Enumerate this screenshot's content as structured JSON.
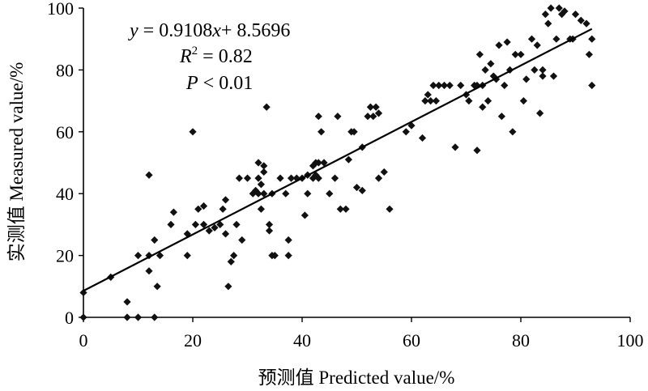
{
  "chart_data": {
    "type": "scatter",
    "xlabel": "预测值 Predicted value/%",
    "ylabel": "实测值 Measured value/%",
    "xlim": [
      0,
      100
    ],
    "ylim": [
      0,
      100
    ],
    "xticks": [
      "0",
      "20",
      "40",
      "60",
      "80",
      "100"
    ],
    "yticks": [
      "0",
      "20",
      "40",
      "60",
      "80",
      "100"
    ],
    "grid": false,
    "legend": "none",
    "point_color": "#111111",
    "annotations": {
      "equation": {
        "y": "y",
        "eq": " = 0.9108",
        "x": "x",
        "rest": "+ 8.5696"
      },
      "r2": {
        "r": "R",
        "sup": "2",
        "rest": " = 0.82"
      },
      "p": {
        "p": "P",
        "rest": " < 0.01"
      }
    },
    "fit_line": {
      "slope": 0.9108,
      "intercept": 8.5696,
      "x_range": [
        0,
        93
      ]
    },
    "series": [
      {
        "points": [
          [
            0,
            8
          ],
          [
            0,
            0
          ],
          [
            5,
            13
          ],
          [
            8,
            0
          ],
          [
            8,
            5
          ],
          [
            10,
            0
          ],
          [
            10,
            20
          ],
          [
            12,
            15
          ],
          [
            12,
            20
          ],
          [
            12,
            46
          ],
          [
            13,
            25
          ],
          [
            13,
            0
          ],
          [
            13.5,
            10
          ],
          [
            14,
            20
          ],
          [
            16,
            30
          ],
          [
            16.5,
            34
          ],
          [
            19,
            20
          ],
          [
            19,
            27
          ],
          [
            20,
            60
          ],
          [
            20.5,
            30
          ],
          [
            21,
            35
          ],
          [
            22,
            30
          ],
          [
            22,
            36
          ],
          [
            23,
            28
          ],
          [
            24,
            29
          ],
          [
            25,
            30
          ],
          [
            25.5,
            35
          ],
          [
            26,
            38
          ],
          [
            26,
            27
          ],
          [
            26.5,
            10
          ],
          [
            27,
            18
          ],
          [
            27.5,
            20
          ],
          [
            28,
            30
          ],
          [
            28.5,
            45
          ],
          [
            29,
            25
          ],
          [
            30,
            45
          ],
          [
            31,
            40
          ],
          [
            31.5,
            41
          ],
          [
            32,
            45
          ],
          [
            32,
            40
          ],
          [
            32,
            50
          ],
          [
            32.5,
            35
          ],
          [
            32.5,
            43
          ],
          [
            33,
            49
          ],
          [
            33,
            40
          ],
          [
            33,
            47
          ],
          [
            33.5,
            68
          ],
          [
            34,
            30
          ],
          [
            34,
            28
          ],
          [
            34.5,
            20
          ],
          [
            34.5,
            40
          ],
          [
            35,
            20
          ],
          [
            36,
            45
          ],
          [
            37,
            40
          ],
          [
            37.5,
            25
          ],
          [
            37.5,
            20
          ],
          [
            38,
            45
          ],
          [
            39,
            45
          ],
          [
            40,
            45
          ],
          [
            40.5,
            33
          ],
          [
            41,
            46
          ],
          [
            41,
            40
          ],
          [
            42,
            45
          ],
          [
            42,
            49
          ],
          [
            42.5,
            50
          ],
          [
            42.5,
            46
          ],
          [
            43,
            45
          ],
          [
            43,
            65
          ],
          [
            43,
            50
          ],
          [
            43.5,
            60
          ],
          [
            44,
            50
          ],
          [
            45,
            40
          ],
          [
            46,
            45
          ],
          [
            46.5,
            65
          ],
          [
            47,
            35
          ],
          [
            48,
            35
          ],
          [
            48.5,
            51
          ],
          [
            49,
            60
          ],
          [
            49.5,
            60
          ],
          [
            50,
            42
          ],
          [
            51,
            55
          ],
          [
            51,
            41
          ],
          [
            52,
            65
          ],
          [
            52.5,
            68
          ],
          [
            53,
            65
          ],
          [
            53.5,
            68
          ],
          [
            54,
            45
          ],
          [
            54,
            66
          ],
          [
            55,
            47
          ],
          [
            56,
            35
          ],
          [
            59,
            60
          ],
          [
            60,
            62
          ],
          [
            62,
            58
          ],
          [
            62.5,
            70
          ],
          [
            63,
            72
          ],
          [
            63.5,
            70
          ],
          [
            64,
            75
          ],
          [
            64.5,
            70
          ],
          [
            65,
            75
          ],
          [
            66,
            75
          ],
          [
            67,
            75
          ],
          [
            68,
            55
          ],
          [
            69,
            75
          ],
          [
            70,
            72
          ],
          [
            70.5,
            70
          ],
          [
            71.5,
            75
          ],
          [
            72,
            54
          ],
          [
            72,
            75
          ],
          [
            72.5,
            85
          ],
          [
            73,
            68
          ],
          [
            73,
            75
          ],
          [
            73.5,
            80
          ],
          [
            74,
            70
          ],
          [
            74.5,
            82
          ],
          [
            75,
            78
          ],
          [
            75.5,
            77
          ],
          [
            76,
            88
          ],
          [
            76.5,
            65
          ],
          [
            77,
            75
          ],
          [
            77.5,
            89
          ],
          [
            78,
            80
          ],
          [
            78.5,
            60
          ],
          [
            79,
            85
          ],
          [
            80,
            85
          ],
          [
            80.5,
            70
          ],
          [
            81,
            77
          ],
          [
            82,
            90
          ],
          [
            82.5,
            80
          ],
          [
            83,
            88
          ],
          [
            83.5,
            66
          ],
          [
            84,
            78
          ],
          [
            84,
            80
          ],
          [
            84.5,
            98
          ],
          [
            85,
            95
          ],
          [
            85.5,
            100
          ],
          [
            86,
            78
          ],
          [
            86.5,
            90
          ],
          [
            87,
            100
          ],
          [
            87.5,
            98
          ],
          [
            88,
            99
          ],
          [
            89,
            90
          ],
          [
            89.5,
            90
          ],
          [
            90,
            98
          ],
          [
            91,
            96
          ],
          [
            92,
            95
          ],
          [
            92.5,
            85
          ],
          [
            93,
            90
          ],
          [
            93,
            75
          ]
        ]
      }
    ]
  }
}
